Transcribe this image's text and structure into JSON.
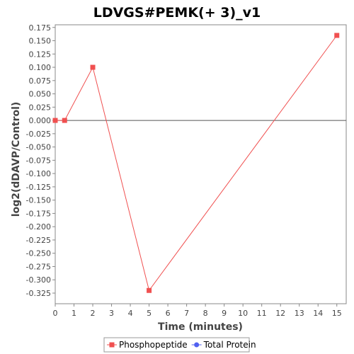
{
  "chart_data": {
    "type": "line",
    "title": "LDVGS#PEMK(+ 3)_v1",
    "xlabel": "Time (minutes)",
    "ylabel": "log2(dDAVP/Control)",
    "xlim": [
      0,
      15.5
    ],
    "ylim": [
      -0.345,
      0.18
    ],
    "x_ticks": [
      0,
      1,
      2,
      3,
      4,
      5,
      6,
      7,
      8,
      9,
      10,
      11,
      12,
      13,
      14,
      15
    ],
    "y_ticks": [
      0.175,
      0.15,
      0.125,
      0.1,
      0.075,
      0.05,
      0.025,
      0.0,
      -0.025,
      -0.05,
      -0.075,
      -0.1,
      -0.125,
      -0.15,
      -0.175,
      -0.2,
      -0.225,
      -0.25,
      -0.275,
      -0.3,
      -0.325
    ],
    "y_tick_labels": [
      "0.175",
      "0.150",
      "0.125",
      "0.100",
      "0.075",
      "0.050",
      "0.025",
      "0.000",
      "-0.025",
      "-0.050",
      "-0.075",
      "-0.100",
      "-0.125",
      "-0.150",
      "-0.175",
      "-0.200",
      "-0.225",
      "-0.250",
      "-0.275",
      "-0.300",
      "-0.325"
    ],
    "zero_line": true,
    "grid": false,
    "legend_position": "bottom",
    "series": [
      {
        "name": "Phosphopeptide",
        "color": "#f05050",
        "marker": "square",
        "x": [
          0,
          0.5,
          2,
          5,
          15
        ],
        "y": [
          0.0,
          0.0,
          0.1,
          -0.32,
          0.16
        ]
      },
      {
        "name": "Total Protein",
        "color": "#5060f0",
        "marker": "circle",
        "x": [],
        "y": []
      }
    ]
  }
}
